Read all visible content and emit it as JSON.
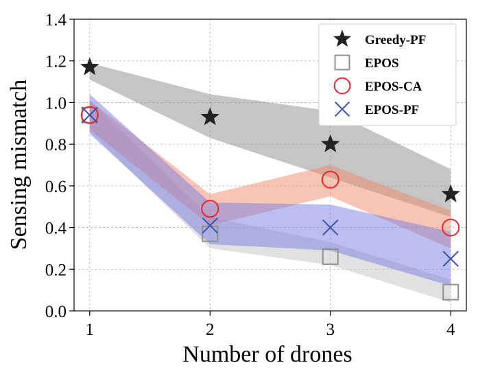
{
  "chart_data": {
    "type": "line",
    "title": "",
    "xlabel": "Number of drones",
    "ylabel": "Sensing mismatch",
    "x": [
      1,
      2,
      3,
      4
    ],
    "xticks": [
      "1",
      "2",
      "3",
      "4"
    ],
    "yticks": [
      "0.0",
      "0.2",
      "0.4",
      "0.6",
      "0.8",
      "1.0",
      "1.2",
      "1.4"
    ],
    "xlim": [
      0.87,
      4.13
    ],
    "ylim": [
      0.0,
      1.4
    ],
    "grid": true,
    "legend_position": "top-right",
    "series": [
      {
        "name": "Greedy-PF",
        "marker": "star",
        "color": "#222222",
        "band_color": "#8c8c8c",
        "values": [
          1.17,
          0.93,
          0.8,
          0.56
        ],
        "band_lower": [
          1.11,
          0.83,
          0.64,
          0.45
        ],
        "band_upper": [
          1.19,
          1.04,
          0.96,
          0.68
        ]
      },
      {
        "name": "EPOS",
        "marker": "square",
        "color": "#909090",
        "band_color": "#c4c4c4",
        "values": [
          0.94,
          0.37,
          0.26,
          0.09
        ],
        "band_lower": [
          0.86,
          0.3,
          0.22,
          0.04
        ],
        "band_upper": [
          1.01,
          0.45,
          0.33,
          0.15
        ]
      },
      {
        "name": "EPOS-CA",
        "marker": "circle",
        "color": "#e8262a",
        "band_color": "#f08a6e",
        "values": [
          0.94,
          0.49,
          0.63,
          0.4
        ],
        "band_lower": [
          0.87,
          0.41,
          0.55,
          0.3
        ],
        "band_upper": [
          1.01,
          0.56,
          0.7,
          0.48
        ]
      },
      {
        "name": "EPOS-PF",
        "marker": "x",
        "color": "#3a4fb0",
        "band_color": "#7a7ee0",
        "values": [
          0.94,
          0.41,
          0.4,
          0.25
        ],
        "band_lower": [
          0.85,
          0.32,
          0.29,
          0.12
        ],
        "band_upper": [
          1.04,
          0.52,
          0.51,
          0.38
        ]
      }
    ]
  }
}
